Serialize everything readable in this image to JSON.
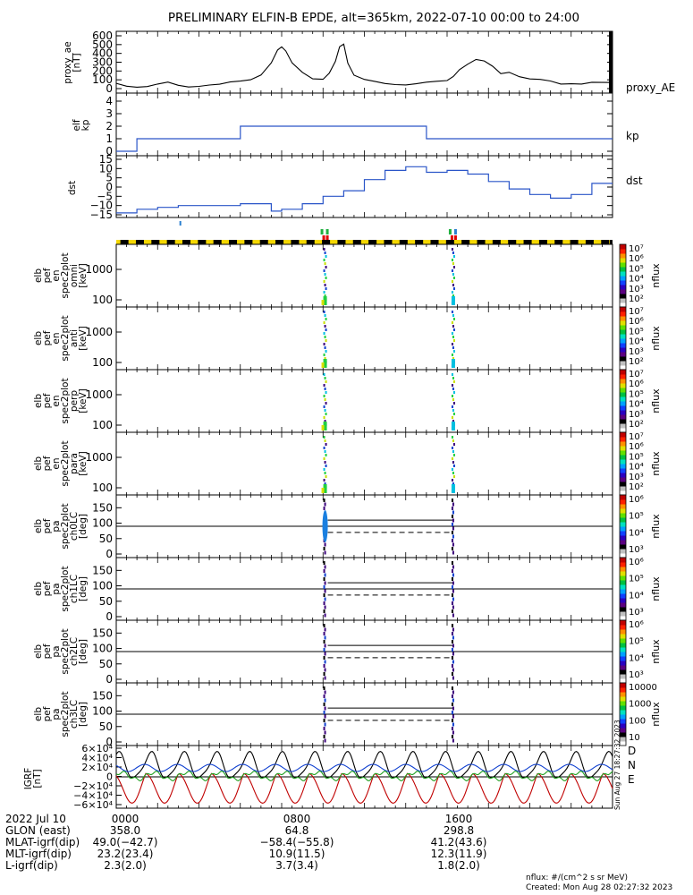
{
  "title": "PRELIMINARY ELFIN-B EPDE, alt=365km, 2022-07-10 00:00 to 24:00",
  "panels": {
    "proxy_ae": {
      "ylabel": [
        "proxy_ae",
        "[nT]"
      ],
      "series_label": "proxy_AE",
      "yticks": [
        "600",
        "500",
        "400",
        "300",
        "200",
        "100",
        "0"
      ],
      "color": "#000000"
    },
    "kp": {
      "ylabel": [
        "elf",
        "kp"
      ],
      "series_label": "kp",
      "yticks": [
        "4",
        "3",
        "2",
        "1",
        "0"
      ],
      "color": "#2a55c8"
    },
    "dst": {
      "ylabel": [
        "dst"
      ],
      "series_label": "dst",
      "yticks": [
        "15",
        "10",
        "5",
        "0",
        "−5",
        "−10",
        "−15"
      ],
      "color": "#2a55c8"
    },
    "spec": [
      {
        "ylabel": [
          "elb",
          "pef",
          "en",
          "spec2plot",
          "omni",
          "[keV]"
        ],
        "yticks": [
          "1000",
          "100"
        ]
      },
      {
        "ylabel": [
          "elb",
          "pef",
          "en",
          "spec2plot",
          "anti",
          "[keV]"
        ],
        "yticks": [
          "1000",
          "100"
        ]
      },
      {
        "ylabel": [
          "elb",
          "pef",
          "en",
          "spec2plot",
          "perp",
          "[keV]"
        ],
        "yticks": [
          "1000",
          "100"
        ]
      },
      {
        "ylabel": [
          "elb",
          "pef",
          "en",
          "spec2plot",
          "para",
          "[keV]"
        ],
        "yticks": [
          "1000",
          "100"
        ]
      }
    ],
    "pa": [
      {
        "ylabel": [
          "elb",
          "pef",
          "pa",
          "spec2plot",
          "ch0LC",
          "[deg]"
        ],
        "yticks": [
          "150",
          "100",
          "50",
          "0"
        ]
      },
      {
        "ylabel": [
          "elb",
          "pef",
          "pa",
          "spec2plot",
          "ch1LC",
          "[deg]"
        ],
        "yticks": [
          "150",
          "100",
          "50",
          "0"
        ]
      },
      {
        "ylabel": [
          "elb",
          "pef",
          "pa",
          "spec2plot",
          "ch2LC",
          "[deg]"
        ],
        "yticks": [
          "150",
          "100",
          "50",
          "0"
        ]
      },
      {
        "ylabel": [
          "elb",
          "pef",
          "pa",
          "spec2plot",
          "ch3LC",
          "[deg]"
        ],
        "yticks": [
          "150",
          "100",
          "50",
          "0"
        ]
      }
    ],
    "igrf": {
      "ylabel": [
        "IGRF",
        "[nT]"
      ],
      "yticks": [
        "6×10⁴",
        "4×10⁴",
        "2×10⁴",
        "0",
        "−2×10⁴",
        "−4×10⁴",
        "−6×10⁴"
      ],
      "legend": [
        {
          "label": "D",
          "color": "#c00000"
        },
        {
          "label": "N",
          "color": "#1040d0"
        },
        {
          "label": "E",
          "color": "#20a020"
        }
      ]
    }
  },
  "colorbar": {
    "unit": "nflux",
    "ticks_spec": [
      "10⁷",
      "10⁶",
      "10⁵",
      "10⁴",
      "10³",
      "10²"
    ],
    "ticks_pa": [
      "10⁶",
      "10⁵",
      "10⁴",
      "10³"
    ],
    "ticks_last": [
      "10000",
      "1000",
      "100",
      "10"
    ],
    "side_text": "Sun Aug 27 18:27:32 2023"
  },
  "chart_data": {
    "type": "line",
    "x_range_hours": [
      0,
      24
    ],
    "series": [
      {
        "name": "proxy_AE",
        "color": "#000000",
        "ylim": [
          0,
          600
        ],
        "x": [
          0,
          0.5,
          1,
          1.5,
          2,
          2.5,
          3,
          3.5,
          4,
          4.5,
          5,
          5.5,
          6,
          6.5,
          7,
          7.5,
          7.8,
          8.0,
          8.2,
          8.5,
          9,
          9.5,
          10,
          10.3,
          10.6,
          10.8,
          11.0,
          11.2,
          11.5,
          12,
          12.5,
          13,
          13.5,
          14,
          14.5,
          15,
          15.5,
          16,
          16.3,
          16.6,
          17,
          17.4,
          17.8,
          18.2,
          18.6,
          19,
          19.5,
          20,
          20.5,
          21,
          21.5,
          22,
          22.5,
          23,
          23.5,
          24
        ],
        "y": [
          60,
          40,
          30,
          25,
          40,
          60,
          35,
          30,
          40,
          45,
          40,
          60,
          80,
          110,
          170,
          300,
          430,
          460,
          420,
          300,
          200,
          120,
          100,
          160,
          300,
          480,
          520,
          300,
          150,
          90,
          70,
          60,
          60,
          55,
          55,
          60,
          70,
          90,
          150,
          230,
          280,
          320,
          300,
          250,
          180,
          200,
          140,
          100,
          90,
          80,
          60,
          70,
          60,
          65,
          55,
          60
        ]
      },
      {
        "name": "kp",
        "color": "#2a55c8",
        "ylim": [
          0,
          4
        ],
        "step": true,
        "x": [
          0,
          1,
          3,
          6,
          9,
          12,
          15,
          18,
          21,
          24
        ],
        "y": [
          0,
          1,
          1,
          2,
          2,
          2,
          1,
          1,
          1,
          1
        ]
      },
      {
        "name": "dst",
        "color": "#2a55c8",
        "ylim": [
          -15,
          15
        ],
        "step": true,
        "x": [
          0,
          1,
          2,
          3,
          4,
          5,
          6,
          7,
          7.5,
          8,
          9,
          10,
          11,
          12,
          13,
          14,
          15,
          16,
          17,
          18,
          19,
          20,
          21,
          22,
          23,
          24
        ],
        "y": [
          -14,
          -12,
          -11,
          -10,
          -10,
          -10,
          -9,
          -9,
          -13,
          -12,
          -9,
          -5,
          -2,
          4,
          9,
          11,
          8,
          9,
          7,
          3,
          -1,
          -4,
          -6,
          -4,
          2,
          2
        ]
      },
      {
        "name": "D",
        "color": "#c00000",
        "ylim": [
          -60000,
          60000
        ],
        "wave": "D"
      },
      {
        "name": "N",
        "color": "#1040d0",
        "ylim": [
          -60000,
          60000
        ],
        "wave": "N"
      },
      {
        "name": "E",
        "color": "#20a020",
        "ylim": [
          -60000,
          60000
        ],
        "wave": "E"
      }
    ],
    "bursts_hours": [
      10.1,
      16.3
    ],
    "lc_deg": 110,
    "alc_deg": 70
  },
  "footer": {
    "date_label": "2022 Jul 10",
    "rows": [
      {
        "label": "GLON (east)",
        "values": [
          "358.0",
          "64.8",
          "298.8"
        ]
      },
      {
        "label": "MLAT-igrf(dip)",
        "values": [
          "49.0(−42.7)",
          "−58.4(−55.8)",
          "41.2(43.6)"
        ]
      },
      {
        "label": "MLT-igrf(dip)",
        "values": [
          "23.2(23.4)",
          "10.9(11.5)",
          "12.3(11.9)"
        ]
      },
      {
        "label": "L-igrf(dip)",
        "values": [
          "2.3(2.0)",
          "3.7(3.4)",
          "1.8(2.0)"
        ]
      }
    ],
    "time_ticks": [
      "0000",
      "0800",
      "1600"
    ],
    "unit_note": "nflux: #/(cm^2 s sr MeV)",
    "created": "Created: Mon Aug 28 02:27:32 2023"
  }
}
